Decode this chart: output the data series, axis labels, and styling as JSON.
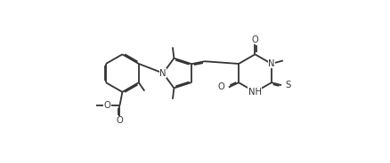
{
  "bg_color": "#ffffff",
  "line_color": "#333333",
  "line_width": 1.3,
  "font_size": 7.2,
  "fig_width": 4.38,
  "fig_height": 1.84,
  "dpi": 100,
  "xlim": [
    -0.5,
    10.5
  ],
  "ylim": [
    -0.3,
    4.5
  ]
}
